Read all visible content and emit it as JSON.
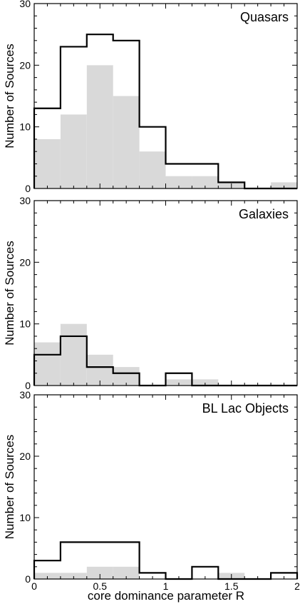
{
  "chart_data": {
    "type": "bar",
    "xlabel": "core dominance parameter R",
    "ylabel": "Number of Sources",
    "xlim": [
      0,
      2
    ],
    "ylim": [
      0,
      30
    ],
    "x_ticks": [
      "0",
      "0.5",
      "1",
      "1.5",
      "2"
    ],
    "y_ticks": [
      "0",
      "10",
      "20",
      "30"
    ],
    "bin_edges": [
      0,
      0.2,
      0.4,
      0.6,
      0.8,
      1.0,
      1.2,
      1.4,
      1.6,
      1.8,
      2.0
    ],
    "grid": false,
    "panels": [
      {
        "label": "Quasars",
        "series": [
          {
            "style": "filled-gray",
            "values": [
              8,
              12,
              20,
              15,
              6,
              2,
              2,
              1,
              0,
              1
            ]
          },
          {
            "style": "black-outline-step",
            "values": [
              13,
              23,
              25,
              24,
              10,
              4,
              4,
              1,
              0,
              0
            ]
          }
        ]
      },
      {
        "label": "Galaxies",
        "series": [
          {
            "style": "filled-gray",
            "values": [
              7,
              10,
              5,
              3,
              0,
              1,
              1,
              0,
              0,
              0
            ]
          },
          {
            "style": "black-outline-step",
            "values": [
              5,
              8,
              3,
              2,
              0,
              2,
              0,
              0,
              0,
              0
            ]
          }
        ]
      },
      {
        "label": "BL Lac Objects",
        "series": [
          {
            "style": "filled-gray",
            "values": [
              1,
              1,
              2,
              2,
              0,
              0,
              0,
              1,
              0,
              0
            ]
          },
          {
            "style": "black-outline-step",
            "values": [
              3,
              6,
              6,
              6,
              1,
              0,
              2,
              0,
              0,
              1
            ]
          }
        ]
      }
    ]
  }
}
